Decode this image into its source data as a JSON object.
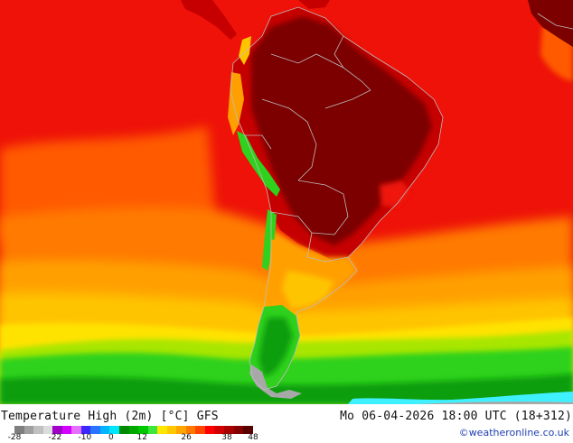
{
  "map": {
    "region": "South America",
    "colors": {
      "very_hot": "#7c0000",
      "hot": "#c60000",
      "red": "#ee1208",
      "orange_red": "#ff3300",
      "orange": "#ff7a00",
      "light_orange": "#ffa000",
      "yellow_orange": "#ffc400",
      "yellow": "#ffe300",
      "light_green": "#a8e600",
      "green": "#2fd11d",
      "dark_green": "#0a9e08",
      "ice_grey": "#a8a8a8",
      "cyan": "#3ff0ff",
      "border": "#bcbcbc"
    }
  },
  "footer": {
    "title": "Temperature High (2m) [°C] GFS",
    "datetime": "Mo 06-04-2026 18:00 UTC (18+312)",
    "credit": "©weatheronline.co.uk"
  },
  "legend": {
    "colors": [
      "#7f7f7f",
      "#a0a0a0",
      "#c0c0c0",
      "#dcdcdc",
      "#a000c8",
      "#d200ff",
      "#e66eff",
      "#3c28ff",
      "#2873ff",
      "#00b4ff",
      "#00e6ff",
      "#008a00",
      "#00a800",
      "#00c800",
      "#3ce63c",
      "#ffe600",
      "#ffc800",
      "#ffa500",
      "#ff7800",
      "#ff4600",
      "#ff0000",
      "#d20000",
      "#aa0000",
      "#820000",
      "#5a0000"
    ],
    "ticks": [
      "-28",
      "-22",
      "-10",
      "0",
      "12",
      "26",
      "38",
      "48"
    ]
  }
}
